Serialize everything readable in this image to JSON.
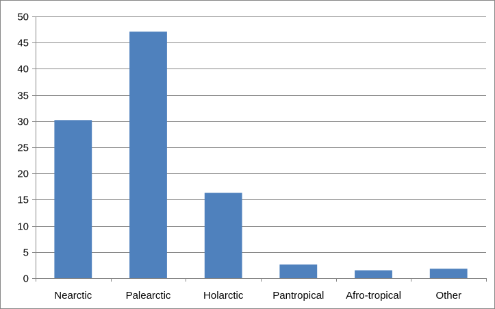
{
  "chart_data": {
    "type": "bar",
    "title": "",
    "xlabel": "",
    "ylabel": "",
    "categories": [
      "Nearctic",
      "Palearctic",
      "Holarctic",
      "Pantropical",
      "Afro-tropical",
      "Other"
    ],
    "values": [
      30.2,
      47.1,
      16.3,
      2.6,
      1.5,
      1.8
    ],
    "ylim": [
      0,
      50
    ],
    "yticks": [
      "0",
      "5",
      "10",
      "15",
      "20",
      "25",
      "30",
      "35",
      "40",
      "45",
      "50"
    ],
    "grid": true,
    "legend": "none",
    "colors": {
      "bar": "#4F81BD",
      "gridline": "#868686",
      "axis": "#868686",
      "text": "#000000"
    }
  }
}
